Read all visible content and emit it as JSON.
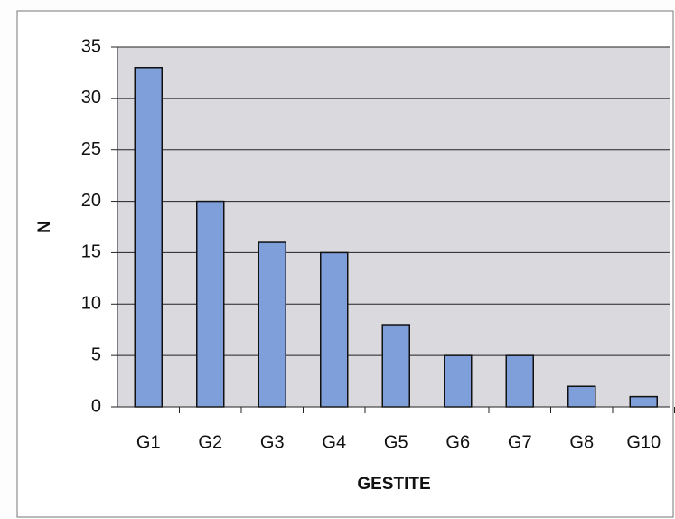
{
  "chart_data": {
    "type": "bar",
    "x_label": "GESTITE",
    "y_label": "N",
    "categories": [
      "G1",
      "G2",
      "G3",
      "G4",
      "G5",
      "G6",
      "G7",
      "G8",
      "G10"
    ],
    "values": [
      33,
      20,
      16,
      15,
      8,
      5,
      5,
      2,
      1
    ],
    "color": "#7f9fdb",
    "ylim": [
      0,
      35
    ],
    "yticks": [
      0,
      5,
      10,
      15,
      20,
      25,
      30,
      35
    ],
    "grid": true
  }
}
